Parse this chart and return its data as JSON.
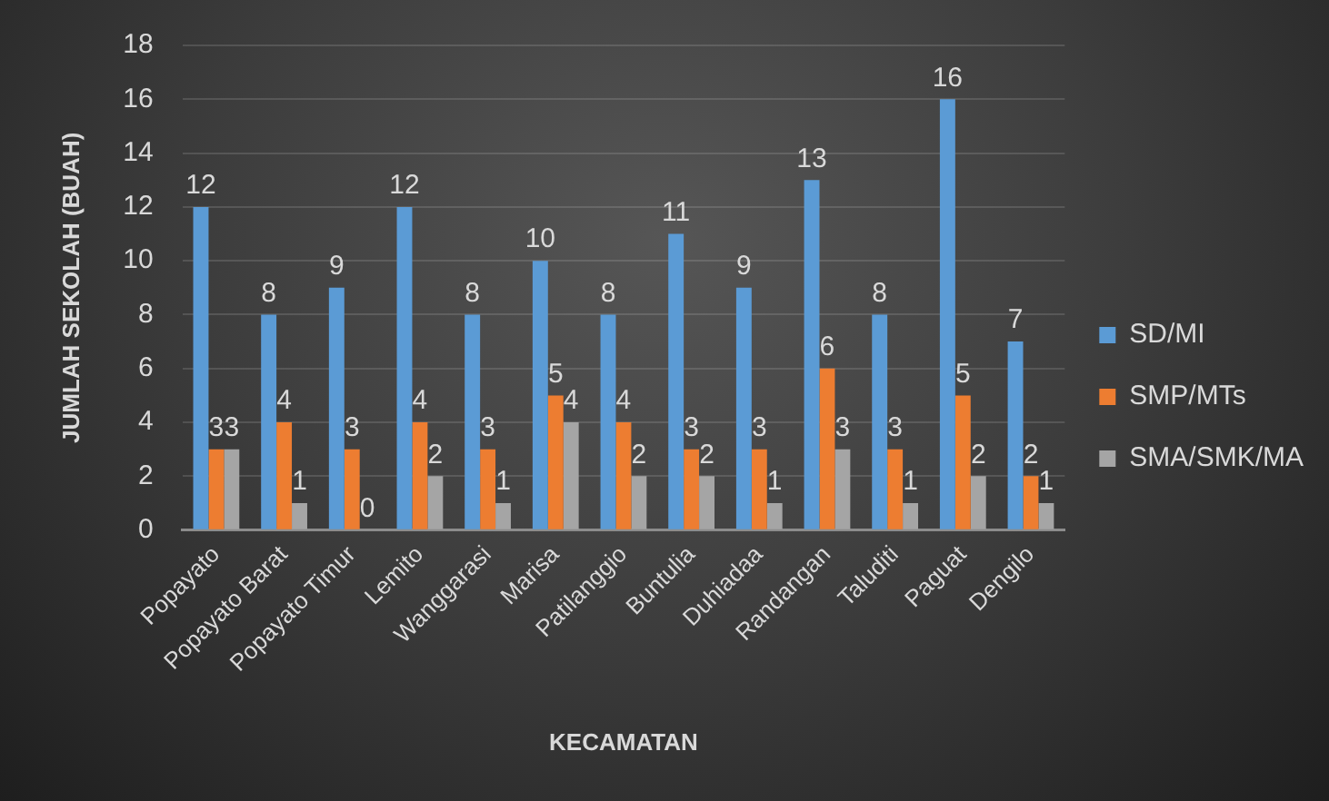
{
  "chart_data": {
    "type": "bar",
    "xlabel": "KECAMATAN",
    "ylabel": "JUMLAH SEKOLAH (BUAH)",
    "categories": [
      "Popayato",
      "Popayato Barat",
      "Popayato Timur",
      "Lemito",
      "Wanggarasi",
      "Marisa",
      "Patilanggio",
      "Buntulia",
      "Duhiadaa",
      "Randangan",
      "Taluditi",
      "Paguat",
      "Dengilo"
    ],
    "series": [
      {
        "name": "SD/MI",
        "color": "#5b9bd5",
        "values": [
          12,
          8,
          9,
          12,
          8,
          10,
          8,
          11,
          9,
          13,
          8,
          16,
          7
        ]
      },
      {
        "name": "SMP/MTs",
        "color": "#ed7d31",
        "values": [
          3,
          4,
          3,
          4,
          3,
          5,
          4,
          3,
          3,
          6,
          3,
          5,
          2
        ]
      },
      {
        "name": "SMA/SMK/MA",
        "color": "#a5a5a5",
        "values": [
          3,
          1,
          0,
          2,
          1,
          4,
          2,
          2,
          1,
          3,
          1,
          2,
          1
        ]
      }
    ],
    "ylim": [
      0,
      18
    ],
    "yticks": [
      0,
      2,
      4,
      6,
      8,
      10,
      12,
      14,
      16,
      18
    ],
    "grid": "y",
    "legend": "right",
    "data_labels": true
  }
}
